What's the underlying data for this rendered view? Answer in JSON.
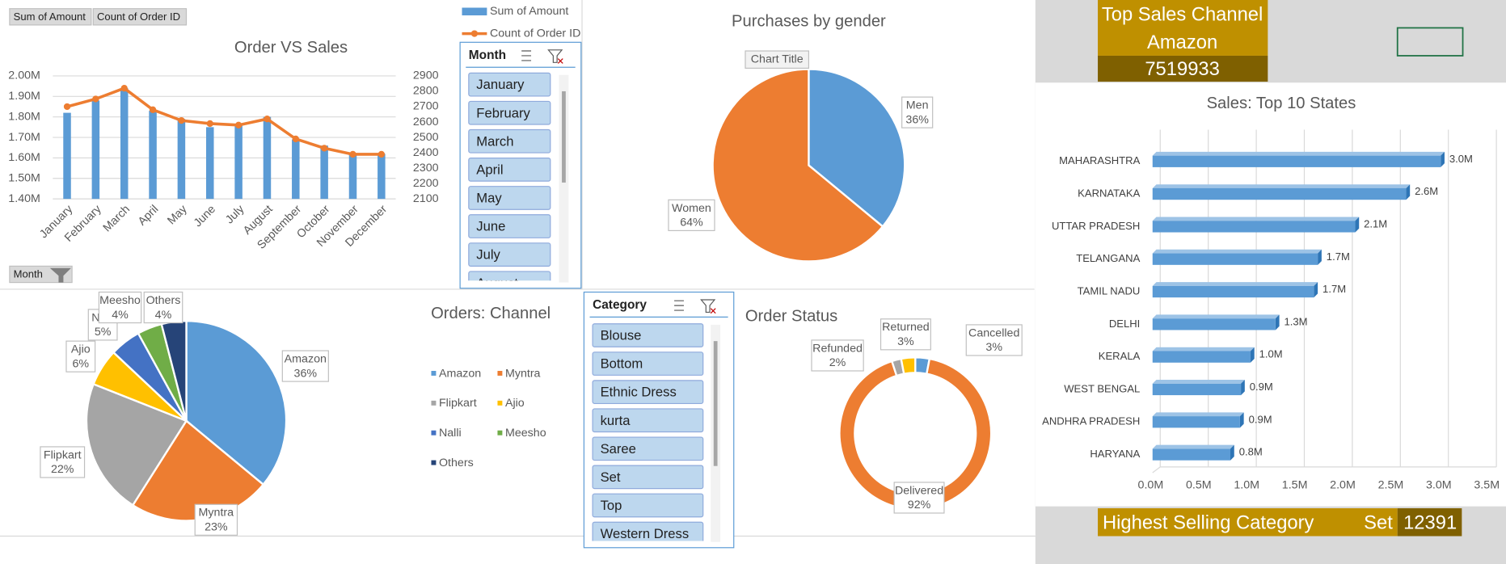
{
  "pivot_buttons": [
    "Sum of Amount",
    "Count of Order ID",
    "Month"
  ],
  "slicers": [
    {
      "title": "Month",
      "items": [
        "January",
        "February",
        "March",
        "April",
        "May",
        "June",
        "July",
        "August"
      ]
    },
    {
      "title": "Category",
      "items": [
        "Blouse",
        "Bottom",
        "Ethnic Dress",
        "kurta",
        "Saree",
        "Set",
        "Top",
        "Western Dress"
      ]
    }
  ],
  "kpis": {
    "top_channel": {
      "label": "Top Sales Channel",
      "value": "Amazon",
      "amount": 7519933
    },
    "top_category": {
      "label": "Highest Selling Category",
      "value": "Set",
      "amount": 12391
    }
  },
  "chart_data": [
    {
      "type": "bar",
      "title": "Order VS Sales",
      "categories": [
        "January",
        "February",
        "March",
        "April",
        "May",
        "June",
        "July",
        "August",
        "September",
        "October",
        "November",
        "December"
      ],
      "series": [
        {
          "name": "Sum of Amount",
          "type": "bar",
          "color": "#5b9bd5",
          "values": [
            1820000,
            1880000,
            1940000,
            1830000,
            1790000,
            1750000,
            1760000,
            1800000,
            1690000,
            1660000,
            1620000,
            1620000
          ]
        },
        {
          "name": "Count of Order ID",
          "type": "line",
          "axis": "y2",
          "color": "#ed7d31",
          "values": [
            2700,
            2750,
            2820,
            2680,
            2610,
            2590,
            2580,
            2620,
            2490,
            2430,
            2390,
            2390
          ]
        }
      ],
      "ylim": [
        1400000,
        2000000
      ],
      "yticks": [
        {
          "value": 1400000,
          "label": "1.40M"
        },
        {
          "value": 1500000,
          "label": "1.50M"
        },
        {
          "value": 1600000,
          "label": "1.60M"
        },
        {
          "value": 1700000,
          "label": "1.70M"
        },
        {
          "value": 1800000,
          "label": "1.80M"
        },
        {
          "value": 1900000,
          "label": "1.90M"
        },
        {
          "value": 2000000,
          "label": "2.00M"
        }
      ],
      "y2lim": [
        2100,
        2900
      ],
      "y2ticks": [
        2100,
        2200,
        2300,
        2400,
        2500,
        2600,
        2700,
        2800,
        2900
      ],
      "grid": true
    },
    {
      "type": "pie",
      "title": "Purchases by gender",
      "annotation": "Chart Title",
      "categories": [
        "Men",
        "Women"
      ],
      "values": [
        36,
        64
      ],
      "value_labels": [
        "36%",
        "64%"
      ],
      "colors": [
        "#5b9bd5",
        "#ed7d31"
      ]
    },
    {
      "type": "bar",
      "orientation": "horizontal",
      "title": "Sales: Top 10 States",
      "categories": [
        "MAHARASHTRA",
        "KARNATAKA",
        "UTTAR PRADESH",
        "TELANGANA",
        "TAMIL NADU",
        "DELHI",
        "KERALA",
        "WEST BENGAL",
        "ANDHRA PRADESH",
        "HARYANA"
      ],
      "values": [
        3000000,
        2640000,
        2110000,
        1720000,
        1680000,
        1280000,
        1020000,
        920000,
        910000,
        810000
      ],
      "value_labels": [
        "3.0M",
        "2.6M",
        "2.1M",
        "1.7M",
        "1.7M",
        "1.3M",
        "1.0M",
        "0.9M",
        "0.9M",
        "0.8M"
      ],
      "color": "#5b9bd5",
      "xlim": [
        0,
        3500000
      ],
      "xticks": [
        {
          "value": 0,
          "label": "0.0M"
        },
        {
          "value": 500000,
          "label": "0.5M"
        },
        {
          "value": 1000000,
          "label": "1.0M"
        },
        {
          "value": 1500000,
          "label": "1.5M"
        },
        {
          "value": 2000000,
          "label": "2.0M"
        },
        {
          "value": 2500000,
          "label": "2.5M"
        },
        {
          "value": 3000000,
          "label": "3.0M"
        },
        {
          "value": 3500000,
          "label": "3.5M"
        }
      ],
      "grid": true
    },
    {
      "type": "pie",
      "title": "Orders: Channel",
      "categories": [
        "Amazon",
        "Myntra",
        "Flipkart",
        "Ajio",
        "Nalli",
        "Meesho",
        "Others"
      ],
      "values": [
        36,
        23,
        22,
        6,
        5,
        4,
        4
      ],
      "value_labels": [
        "36%",
        "23%",
        "22%",
        "6%",
        "5%",
        "4%",
        "4%"
      ],
      "colors": [
        "#5b9bd5",
        "#ed7d31",
        "#a5a5a5",
        "#ffc000",
        "#4472c4",
        "#70ad47",
        "#264478"
      ],
      "legend": "right"
    },
    {
      "type": "doughnut",
      "title": "Order Status",
      "categories": [
        "Cancelled",
        "Delivered",
        "Refunded",
        "Returned"
      ],
      "values": [
        3,
        92,
        2,
        3
      ],
      "value_labels": [
        "3%",
        "92%",
        "2%",
        "3%"
      ],
      "colors": [
        "#5b9bd5",
        "#ed7d31",
        "#a5a5a5",
        "#ffc000"
      ]
    }
  ]
}
